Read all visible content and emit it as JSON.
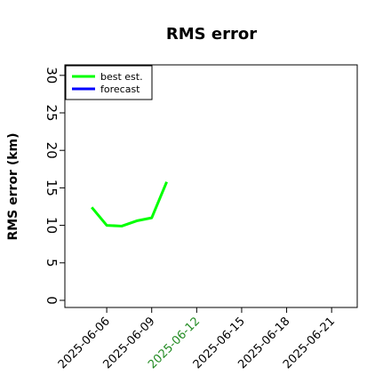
{
  "chart_data": {
    "type": "line",
    "title": "RMS error",
    "y_label": "RMS error (km)",
    "x": [
      "2025-06-05",
      "2025-06-06",
      "2025-06-07",
      "2025-06-08",
      "2025-06-09",
      "2025-06-10"
    ],
    "series": [
      {
        "name": "best est.",
        "color": "#00ff00",
        "values": [
          12.4,
          10.0,
          9.9,
          10.6,
          11.0,
          15.8
        ]
      },
      {
        "name": "forecast",
        "color": "#0000ff",
        "values": [
          null,
          null,
          null,
          null,
          null,
          null
        ]
      }
    ],
    "xlim": [
      "2025-06-03T05:00",
      "2025-06-22T17:00"
    ],
    "xticks": [
      "2025-06-06",
      "2025-06-09",
      "2025-06-12",
      "2025-06-15",
      "2025-06-18",
      "2025-06-21"
    ],
    "xtick_label_colors": [
      "#000000",
      "#000000",
      "#228b22",
      "#000000",
      "#000000",
      "#000000"
    ],
    "ylim": [
      -0.95,
      31.4
    ],
    "yticks": [
      0,
      5,
      10,
      15,
      20,
      25,
      30
    ],
    "grid": false,
    "legend": "upper left"
  }
}
